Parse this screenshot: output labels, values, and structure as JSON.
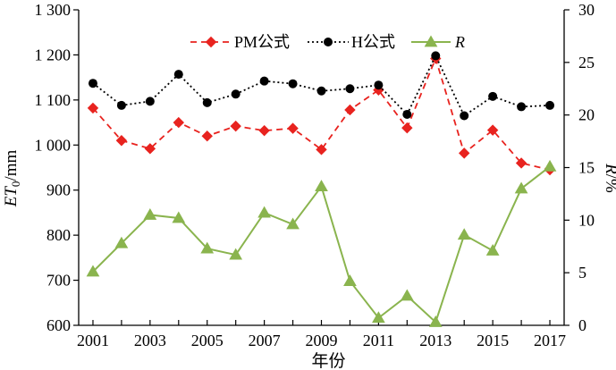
{
  "chart_data": {
    "type": "line",
    "title": "",
    "x": [
      2001,
      2002,
      2003,
      2004,
      2005,
      2006,
      2007,
      2008,
      2009,
      2010,
      2011,
      2012,
      2013,
      2014,
      2015,
      2016,
      2017
    ],
    "x_tick_labels": [
      "2001",
      "2003",
      "2005",
      "2007",
      "2009",
      "2011",
      "2013",
      "2015",
      "2017"
    ],
    "xlabel": "年份",
    "xlim": [
      2000.5,
      2017.5
    ],
    "y_left": {
      "label_main": "ET",
      "label_sub": "0",
      "label_unit": "/mm",
      "ylim": [
        600,
        1300
      ],
      "ticks": [
        600,
        700,
        800,
        900,
        1000,
        1100,
        1200,
        1300
      ],
      "tick_labels": [
        "600",
        "700",
        "800",
        "900",
        "1 000",
        "1 100",
        "1 200",
        "1 300"
      ]
    },
    "y_right": {
      "label_main": "R",
      "label_unit": "/%",
      "ylim": [
        0,
        30
      ],
      "ticks": [
        0,
        5,
        10,
        15,
        20,
        25,
        30
      ],
      "tick_labels": [
        "0",
        "5",
        "10",
        "15",
        "20",
        "25",
        "30"
      ]
    },
    "series": [
      {
        "name": "PM公式",
        "axis": "left",
        "color": "#e8231f",
        "line": "dashed",
        "marker": "diamond",
        "values": [
          1082,
          1010,
          992,
          1050,
          1020,
          1042,
          1032,
          1037,
          990,
          1078,
          1122,
          1038,
          1192,
          982,
          1033,
          960,
          945
        ]
      },
      {
        "name": "H公式",
        "axis": "left",
        "color": "#000000",
        "line": "dotted",
        "marker": "circle",
        "values": [
          1137,
          1088,
          1097,
          1157,
          1094,
          1113,
          1142,
          1136,
          1120,
          1125,
          1133,
          1068,
          1198,
          1065,
          1108,
          1085,
          1088
        ]
      },
      {
        "name": "R",
        "axis": "right",
        "color": "#8ab44e",
        "line": "solid",
        "marker": "triangle",
        "values": [
          5.1,
          7.8,
          10.5,
          10.2,
          7.3,
          6.7,
          10.7,
          9.6,
          13.2,
          4.2,
          0.7,
          2.8,
          0.3,
          8.6,
          7.1,
          13.0,
          15.1
        ]
      }
    ],
    "legend_position": "top-center",
    "grid": false
  }
}
